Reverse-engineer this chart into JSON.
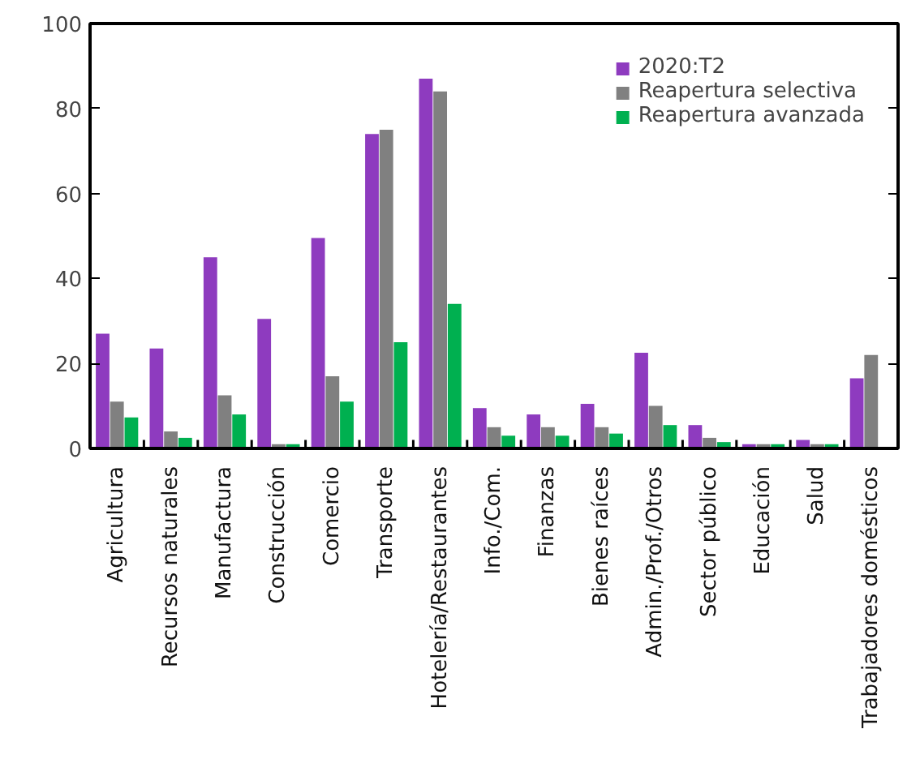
{
  "chart_data": {
    "type": "bar",
    "categories": [
      "Agricultura",
      "Recursos naturales",
      "Manufactura",
      "Construcción",
      "Comercio",
      "Transporte",
      "Hotelería/Restaurantes",
      "Info./Com.",
      "Finanzas",
      "Bienes raíces",
      "Admin./Prof./Otros",
      "Sector público",
      "Educación",
      "Salud",
      "Trabajadores domésticos"
    ],
    "series": [
      {
        "name": "2020:T2",
        "color": "#8e3bbf",
        "values": [
          27,
          23.5,
          45,
          30.5,
          49.5,
          74,
          87,
          9.5,
          8,
          10.5,
          22.5,
          5.5,
          1,
          2,
          16.5
        ]
      },
      {
        "name": "Reapertura selectiva",
        "color": "#808080",
        "values": [
          11,
          4,
          12.5,
          1,
          17,
          75,
          84,
          5,
          5,
          5,
          10,
          2.5,
          1,
          1,
          22
        ]
      },
      {
        "name": "Reapertura avanzada",
        "color": "#00b050",
        "values": [
          7.3,
          2.5,
          8,
          1,
          11,
          25,
          34,
          3,
          3,
          3.5,
          5.5,
          1.5,
          1,
          1,
          null
        ]
      }
    ],
    "ylim": [
      0,
      100
    ],
    "yticks": [
      0,
      20,
      40,
      60,
      80,
      100
    ],
    "grid": false,
    "legend": "top right"
  }
}
